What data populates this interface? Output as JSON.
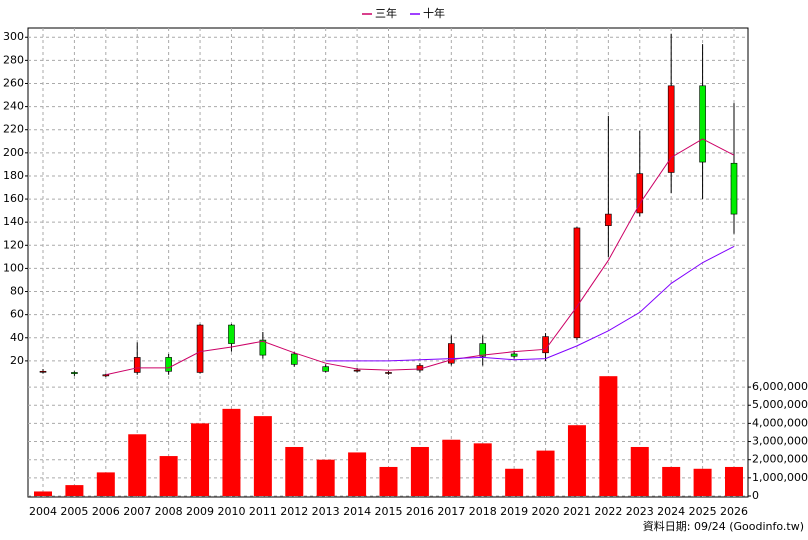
{
  "chart_data": {
    "type": "candlestick",
    "categories": [
      "2004",
      "2005",
      "2006",
      "2007",
      "2008",
      "2009",
      "2010",
      "2011",
      "2012",
      "2013",
      "2014",
      "2015",
      "2016",
      "2017",
      "2018",
      "2019",
      "2020",
      "2021",
      "2022",
      "2023",
      "2024",
      "2025",
      "2026"
    ],
    "ohlc": {
      "open": [
        11,
        10,
        7,
        10,
        23,
        10,
        51,
        38,
        26,
        15,
        12,
        10,
        12,
        18,
        35,
        26,
        27,
        40,
        137,
        148,
        183,
        258,
        191
      ],
      "high": [
        13,
        11,
        9,
        36,
        26,
        52,
        52,
        45,
        28,
        17,
        14,
        11,
        18,
        42,
        42,
        29,
        44,
        136,
        232,
        219,
        303,
        294,
        243
      ],
      "low": [
        9,
        7,
        6,
        8,
        8,
        9,
        28,
        22,
        15,
        10,
        10,
        8,
        10,
        16,
        16,
        22,
        20,
        38,
        110,
        145,
        165,
        160,
        130
      ],
      "close": [
        11,
        9,
        8,
        23,
        11,
        51,
        35,
        25,
        17,
        11,
        12,
        10,
        16,
        35,
        24,
        24,
        41,
        135,
        147,
        182,
        258,
        192,
        147
      ]
    },
    "up_color": "#ff0000",
    "down_color": "#00ee00",
    "series": [
      {
        "name": "三年",
        "color": "#cc0066",
        "values": [
          null,
          null,
          8,
          14,
          14,
          28,
          32,
          37,
          27,
          18,
          13,
          12,
          13,
          21,
          25,
          28,
          30,
          67,
          107,
          156,
          196,
          212,
          198
        ]
      },
      {
        "name": "十年",
        "color": "#8000ff",
        "values": [
          null,
          null,
          null,
          null,
          null,
          null,
          null,
          null,
          null,
          20,
          20,
          20,
          21,
          22,
          23,
          21,
          22,
          33,
          46,
          62,
          87,
          105,
          119
        ]
      }
    ],
    "ylim": [
      0,
      308
    ],
    "yticks": [
      20,
      40,
      60,
      80,
      100,
      120,
      140,
      160,
      180,
      200,
      220,
      240,
      260,
      280,
      300
    ],
    "volume": {
      "color": "#ff0000",
      "values": [
        250000,
        600000,
        1300000,
        3400000,
        2200000,
        4000000,
        4800000,
        4400000,
        2700000,
        2000000,
        2400000,
        1600000,
        2700000,
        3100000,
        2900000,
        1500000,
        2500000,
        3900000,
        6600000,
        2700000,
        1600000,
        1500000,
        1600000
      ]
    },
    "y2lim": [
      0,
      6500000
    ],
    "y2ticks": [
      0,
      {
        "value": 1000000,
        "label": "1,000,000"
      },
      {
        "value": 2000000,
        "label": "2,000,000"
      },
      {
        "value": 3000000,
        "label": "3,000,000"
      },
      {
        "value": 4000000,
        "label": "4,000,000"
      },
      {
        "value": 5000000,
        "label": "5,000,000"
      },
      {
        "value": 6000000,
        "label": "6,000,000"
      }
    ],
    "grid": true,
    "footnote": "資料日期: 09/24 (Goodinfo.tw)"
  }
}
